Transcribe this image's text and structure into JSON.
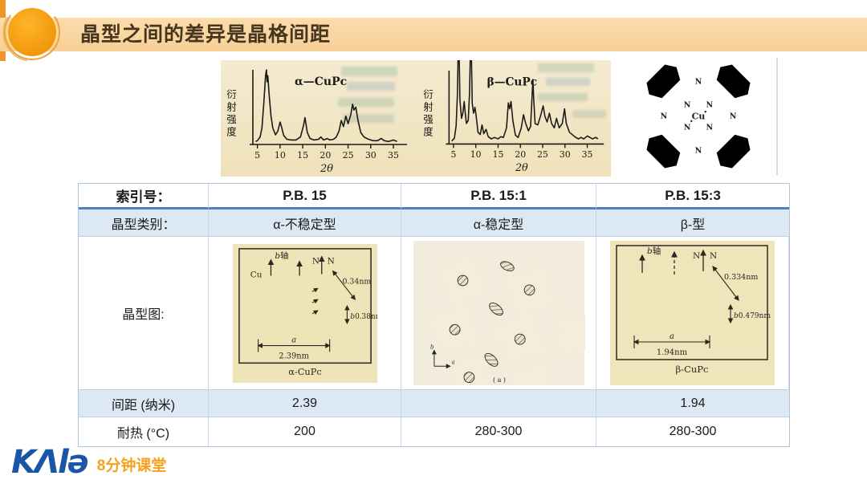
{
  "title": "晶型之间的差异是晶格间距",
  "footer": {
    "logo": "KΛlə",
    "tagline": "8分钟课堂"
  },
  "molecule": {
    "cu": "Cu",
    "n": "N"
  },
  "chart_data": [
    {
      "type": "line",
      "label": "α—CuPc",
      "ylabel": "衍射强度",
      "xlabel": "2θ",
      "ticks": [
        5,
        10,
        15,
        20,
        25,
        30,
        35
      ],
      "x_range": [
        4,
        38
      ],
      "ylim": [
        0,
        100
      ],
      "legend_position": "inside-top",
      "grid": false,
      "points": [
        [
          4.6,
          4
        ],
        [
          5,
          5
        ],
        [
          5.6,
          10
        ],
        [
          6,
          22
        ],
        [
          6.4,
          55
        ],
        [
          6.8,
          92
        ],
        [
          7,
          100
        ],
        [
          7.15,
          84
        ],
        [
          7.3,
          92
        ],
        [
          7.6,
          66
        ],
        [
          8,
          38
        ],
        [
          8.4,
          22
        ],
        [
          9,
          13
        ],
        [
          9.5,
          18
        ],
        [
          10,
          30
        ],
        [
          10.3,
          24
        ],
        [
          10.8,
          12
        ],
        [
          11.5,
          7
        ],
        [
          12.5,
          6
        ],
        [
          13.5,
          6
        ],
        [
          14.5,
          10
        ],
        [
          15.2,
          26
        ],
        [
          15.5,
          36
        ],
        [
          16,
          16
        ],
        [
          16.6,
          8
        ],
        [
          17.5,
          6
        ],
        [
          18.5,
          7
        ],
        [
          19,
          10
        ],
        [
          19.6,
          6
        ],
        [
          20.4,
          8
        ],
        [
          21,
          6
        ],
        [
          21.8,
          7
        ],
        [
          22.4,
          10
        ],
        [
          23,
          18
        ],
        [
          23.5,
          32
        ],
        [
          24,
          24
        ],
        [
          24.5,
          38
        ],
        [
          25,
          28
        ],
        [
          25.6,
          40
        ],
        [
          26,
          54
        ],
        [
          26.3,
          46
        ],
        [
          26.7,
          50
        ],
        [
          27.2,
          32
        ],
        [
          27.8,
          16
        ],
        [
          28.5,
          10
        ],
        [
          29.5,
          7
        ],
        [
          30.5,
          5
        ],
        [
          31.5,
          5
        ],
        [
          32.3,
          8
        ],
        [
          33,
          5
        ],
        [
          34,
          4
        ],
        [
          35,
          6
        ],
        [
          35.8,
          4
        ]
      ]
    },
    {
      "type": "line",
      "label": "β—CuPc",
      "ylabel": "衍射强度",
      "xlabel": "2θ",
      "ticks": [
        5,
        10,
        15,
        20,
        25,
        30,
        35
      ],
      "x_range": [
        4,
        38
      ],
      "ylim": [
        0,
        100
      ],
      "legend_position": "inside-top",
      "grid": false,
      "points": [
        [
          4.6,
          4
        ],
        [
          5.2,
          8
        ],
        [
          5.6,
          25
        ],
        [
          5.9,
          70
        ],
        [
          6.05,
          130
        ],
        [
          6.25,
          130
        ],
        [
          6.45,
          60
        ],
        [
          6.8,
          35
        ],
        [
          7.1,
          42
        ],
        [
          7.4,
          58
        ],
        [
          7.6,
          45
        ],
        [
          7.9,
          28
        ],
        [
          8.3,
          32
        ],
        [
          8.6,
          70
        ],
        [
          8.8,
          130
        ],
        [
          9.0,
          130
        ],
        [
          9.2,
          55
        ],
        [
          9.5,
          42
        ],
        [
          9.8,
          50
        ],
        [
          10.1,
          38
        ],
        [
          10.5,
          16
        ],
        [
          11,
          13
        ],
        [
          11.4,
          26
        ],
        [
          11.8,
          14
        ],
        [
          12.3,
          20
        ],
        [
          12.8,
          10
        ],
        [
          13.5,
          7
        ],
        [
          14.2,
          9
        ],
        [
          15,
          7
        ],
        [
          15.6,
          10
        ],
        [
          16.2,
          9
        ],
        [
          16.9,
          22
        ],
        [
          17.3,
          56
        ],
        [
          17.6,
          48
        ],
        [
          17.9,
          58
        ],
        [
          18.3,
          32
        ],
        [
          18.9,
          12
        ],
        [
          19.5,
          9
        ],
        [
          20.2,
          22
        ],
        [
          20.7,
          40
        ],
        [
          21.2,
          28
        ],
        [
          21.8,
          18
        ],
        [
          22.3,
          24
        ],
        [
          22.8,
          88
        ],
        [
          23.0,
          60
        ],
        [
          23.3,
          28
        ],
        [
          23.9,
          26
        ],
        [
          24.5,
          38
        ],
        [
          25.1,
          52
        ],
        [
          25.5,
          38
        ],
        [
          26,
          30
        ],
        [
          26.5,
          42
        ],
        [
          27,
          28
        ],
        [
          27.6,
          22
        ],
        [
          28.1,
          35
        ],
        [
          28.7,
          22
        ],
        [
          29.4,
          28
        ],
        [
          29.9,
          48
        ],
        [
          30.3,
          28
        ],
        [
          31,
          16
        ],
        [
          31.6,
          13
        ],
        [
          32.2,
          10
        ],
        [
          33,
          7
        ],
        [
          33.6,
          9
        ],
        [
          34.2,
          7
        ],
        [
          35,
          11
        ],
        [
          35.6,
          9
        ],
        [
          36.2,
          7
        ],
        [
          36.9,
          9
        ],
        [
          37.4,
          7
        ]
      ]
    }
  ],
  "diagrams": {
    "alpha": {
      "b": "b",
      "axis": "轴",
      "cu": "Cu",
      "n": "N",
      "d1": "0.34nm",
      "d2": "0.38nm",
      "a": "a",
      "av": "2.39nm",
      "caption": "α-CuPc"
    },
    "stable": {
      "caption": "( a )",
      "a": "a",
      "b": "b"
    },
    "beta": {
      "b": "b",
      "axis": "轴",
      "n": "N",
      "d1": "0.334nm",
      "d2": "0.479nm",
      "a": "a",
      "av": "1.94nm",
      "caption": "β-CuPc"
    }
  },
  "table": {
    "rows": [
      {
        "label": "索引号：",
        "cells": [
          "P.B. 15",
          "P.B. 15:1",
          "P.B. 15:3"
        ]
      },
      {
        "label": "晶型类别：",
        "cells": [
          "α-不稳定型",
          "α-稳定型",
          "β-型"
        ]
      },
      {
        "label": "晶型图:",
        "cells": [
          "",
          "",
          ""
        ]
      },
      {
        "label": "间距 (纳米)",
        "cells": [
          "2.39",
          "",
          "1.94"
        ]
      },
      {
        "label": "耐热 (°C)",
        "cells": [
          "200",
          "280-300",
          "280-300"
        ]
      }
    ]
  }
}
